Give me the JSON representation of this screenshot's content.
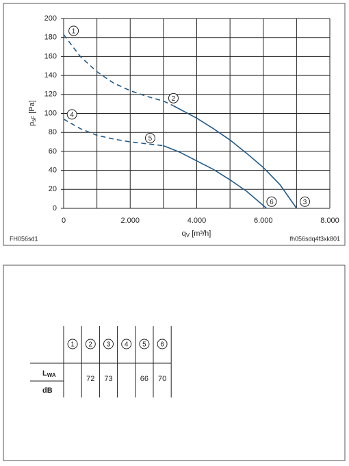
{
  "chart_data": {
    "type": "line",
    "y_label": "p",
    "y_label_sub": "sF",
    "y_label_unit": " [Pa]",
    "x_label": "q",
    "x_label_sub": "V",
    "x_label_unit": " [m³/h]",
    "footnote_left": "FH056sd1",
    "footnote_right": "fh056sdq4f3xk801",
    "xlim": [
      0,
      8000
    ],
    "ylim": [
      0,
      200
    ],
    "xticks": [
      0,
      {
        "value": 2000,
        "label": "2.000"
      },
      {
        "value": 4000,
        "label": "4.000"
      },
      {
        "value": 6000,
        "label": "6.000"
      },
      {
        "value": 8000,
        "label": "8.000"
      }
    ],
    "x_minor_grid": [
      1000,
      3000,
      5000,
      7000
    ],
    "yticks": [
      0,
      20,
      40,
      60,
      80,
      100,
      120,
      140,
      160,
      180,
      200
    ],
    "grid": true,
    "series": [
      {
        "color": "#1f5a8a",
        "style": "dashed",
        "x": [
          0,
          500,
          1000,
          1500,
          2000,
          2500,
          3000,
          3300
        ],
        "values": [
          183,
          160,
          144,
          132,
          124,
          118,
          113,
          108
        ]
      },
      {
        "color": "#1f5a8a",
        "style": "solid",
        "x": [
          3300,
          4000,
          4500,
          5000,
          5500,
          6000,
          6500,
          7000
        ],
        "values": [
          108,
          95,
          84,
          72,
          58,
          43,
          25,
          0
        ]
      },
      {
        "color": "#1f5a8a",
        "style": "dashed",
        "x": [
          0,
          500,
          1000,
          1500,
          2000,
          2500,
          3000
        ],
        "values": [
          94,
          84,
          77,
          73,
          70,
          68,
          66
        ]
      },
      {
        "color": "#1f5a8a",
        "style": "solid",
        "x": [
          3000,
          3500,
          4000,
          4500,
          5000,
          5500,
          6100
        ],
        "values": [
          66,
          59,
          50,
          41,
          30,
          18,
          0
        ]
      }
    ],
    "annotations": [
      {
        "text": "1",
        "x": 300,
        "y": 187
      },
      {
        "text": "2",
        "x": 3300,
        "y": 116
      },
      {
        "text": "3",
        "x": 7250,
        "y": 7
      },
      {
        "text": "4",
        "x": 250,
        "y": 99
      },
      {
        "text": "5",
        "x": 2600,
        "y": 74
      },
      {
        "text": "6",
        "x": 6250,
        "y": 7
      }
    ]
  },
  "table": {
    "columns": [
      "1",
      "2",
      "3",
      "4",
      "5",
      "6"
    ],
    "rows": [
      {
        "label": "L",
        "label_sub": "WA",
        "unit": "dB",
        "values": [
          null,
          72,
          73,
          null,
          66,
          70
        ]
      }
    ]
  }
}
